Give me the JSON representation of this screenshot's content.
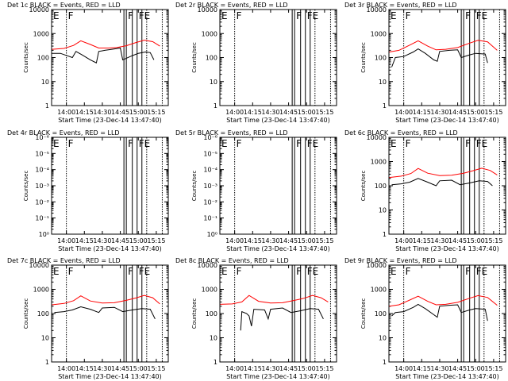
{
  "colors": {
    "events": "#000000",
    "lld": "#ff0000",
    "axes": "#000000",
    "background": "#ffffff"
  },
  "xlabel": "Start Time (23-Dec-14 13:47:40)",
  "ylabel": "Counts/sec",
  "x_tick_labels": [
    "14:00",
    "14:15",
    "14:30",
    "14:45",
    "15:00",
    "15:15"
  ],
  "y_tick_labels_log": [
    "1",
    "10",
    "100",
    "1000",
    "10000"
  ],
  "y_tick_labels_empty": [
    "10⁰",
    "10⁻¹",
    "10⁻²",
    "10⁻³",
    "10⁻⁴",
    "10⁻⁵",
    "10⁻⁶"
  ],
  "markers": {
    "first": "E",
    "second": "F",
    "third": "F",
    "fourth": "FE"
  },
  "chart_data": [
    {
      "type": "line",
      "title": "Det 1c BLACK = Events, RED = LLD",
      "kind": "data",
      "variant": "normal",
      "x_range": [
        "13:47:40",
        "15:25"
      ],
      "y_range": [
        1,
        10000
      ],
      "y_scale": "log",
      "series": [
        {
          "name": "Events",
          "color": "#000000",
          "points": [
            [
              "13:48",
              150
            ],
            [
              "13:55",
              150
            ],
            [
              "14:05",
              100
            ],
            [
              "14:08",
              180
            ],
            [
              "14:13",
              130
            ],
            [
              "14:20",
              80
            ],
            [
              "14:25",
              60
            ],
            [
              "14:27",
              180
            ],
            [
              "14:32",
              200
            ],
            [
              "14:38",
              220
            ],
            [
              "14:45",
              250
            ],
            [
              "14:47",
              80
            ],
            [
              "14:55",
              120
            ],
            [
              "15:00",
              150
            ],
            [
              "15:06",
              170
            ],
            [
              "15:10",
              160
            ],
            [
              "15:13",
              80
            ]
          ]
        },
        {
          "name": "LLD",
          "color": "#ff0000",
          "points": [
            [
              "13:48",
              220
            ],
            [
              "13:58",
              240
            ],
            [
              "14:06",
              320
            ],
            [
              "14:12",
              500
            ],
            [
              "14:20",
              350
            ],
            [
              "14:27",
              250
            ],
            [
              "14:35",
              250
            ],
            [
              "14:42",
              260
            ],
            [
              "14:50",
              310
            ],
            [
              "14:58",
              420
            ],
            [
              "15:05",
              530
            ],
            [
              "15:12",
              460
            ],
            [
              "15:18",
              300
            ]
          ]
        }
      ]
    },
    {
      "type": "line",
      "title": "Det 2r BLACK = Events, RED = LLD",
      "kind": "data",
      "variant": "flat",
      "x_range": [
        "13:47:40",
        "15:25"
      ],
      "y_range": [
        1,
        10000
      ],
      "y_scale": "log",
      "series": []
    },
    {
      "type": "line",
      "title": "Det 3r BLACK = Events, RED = LLD",
      "kind": "data",
      "variant": "tall",
      "x_range": [
        "13:47:40",
        "15:25"
      ],
      "y_range": [
        1,
        10000
      ],
      "y_scale": "log",
      "series": [
        {
          "name": "Events",
          "color": "#000000",
          "points": [
            [
              "13:50",
              40
            ],
            [
              "13:53",
              100
            ],
            [
              "14:00",
              110
            ],
            [
              "14:08",
              170
            ],
            [
              "14:12",
              230
            ],
            [
              "14:18",
              150
            ],
            [
              "14:25",
              80
            ],
            [
              "14:28",
              70
            ],
            [
              "14:30",
              180
            ],
            [
              "14:38",
              200
            ],
            [
              "14:45",
              210
            ],
            [
              "14:48",
              100
            ],
            [
              "14:55",
              130
            ],
            [
              "15:00",
              150
            ],
            [
              "15:08",
              140
            ],
            [
              "15:10",
              60
            ]
          ]
        },
        {
          "name": "LLD",
          "color": "#ff0000",
          "points": [
            [
              "13:48",
              170
            ],
            [
              "13:56",
              200
            ],
            [
              "14:05",
              330
            ],
            [
              "14:12",
              500
            ],
            [
              "14:20",
              300
            ],
            [
              "14:27",
              210
            ],
            [
              "14:35",
              220
            ],
            [
              "14:45",
              260
            ],
            [
              "14:55",
              400
            ],
            [
              "15:02",
              520
            ],
            [
              "15:10",
              450
            ],
            [
              "15:18",
              200
            ]
          ]
        }
      ]
    },
    {
      "type": "line",
      "title": "Det 4r BLACK = Events, RED = LLD",
      "kind": "empty",
      "x_range": [
        "13:47:40",
        "15:25"
      ],
      "y_range": [
        1e-06,
        1
      ],
      "y_scale": "log",
      "series": []
    },
    {
      "type": "line",
      "title": "Det 5r BLACK = Events, RED = LLD",
      "kind": "empty",
      "x_range": [
        "13:47:40",
        "15:25"
      ],
      "y_range": [
        1e-06,
        1
      ],
      "y_scale": "log",
      "series": []
    },
    {
      "type": "line",
      "title": "Det 6c BLACK = Events, RED = LLD",
      "kind": "data",
      "variant": "normal",
      "x_range": [
        "13:47:40",
        "15:25"
      ],
      "y_range": [
        1,
        10000
      ],
      "y_scale": "log",
      "series": [
        {
          "name": "Events",
          "color": "#000000",
          "points": [
            [
              "13:50",
              110
            ],
            [
              "13:58",
              120
            ],
            [
              "14:05",
              140
            ],
            [
              "14:12",
              200
            ],
            [
              "14:20",
              140
            ],
            [
              "14:27",
              100
            ],
            [
              "14:30",
              160
            ],
            [
              "14:40",
              170
            ],
            [
              "14:47",
              110
            ],
            [
              "14:55",
              130
            ],
            [
              "15:03",
              160
            ],
            [
              "15:10",
              150
            ],
            [
              "15:14",
              100
            ]
          ]
        },
        {
          "name": "LLD",
          "color": "#ff0000",
          "points": [
            [
              "13:48",
              220
            ],
            [
              "13:58",
              250
            ],
            [
              "14:06",
              320
            ],
            [
              "14:12",
              520
            ],
            [
              "14:20",
              330
            ],
            [
              "14:30",
              260
            ],
            [
              "14:40",
              270
            ],
            [
              "14:50",
              330
            ],
            [
              "14:58",
              420
            ],
            [
              "15:05",
              530
            ],
            [
              "15:12",
              430
            ],
            [
              "15:18",
              280
            ]
          ]
        }
      ]
    },
    {
      "type": "line",
      "title": "Det 7c BLACK = Events, RED = LLD",
      "kind": "data",
      "variant": "normal",
      "x_range": [
        "13:47:40",
        "15:25"
      ],
      "y_range": [
        1,
        10000
      ],
      "y_scale": "log",
      "series": [
        {
          "name": "Events",
          "color": "#000000",
          "points": [
            [
              "13:50",
              110
            ],
            [
              "13:58",
              120
            ],
            [
              "14:05",
              140
            ],
            [
              "14:12",
              190
            ],
            [
              "14:20",
              150
            ],
            [
              "14:27",
              110
            ],
            [
              "14:30",
              170
            ],
            [
              "14:40",
              180
            ],
            [
              "14:47",
              120
            ],
            [
              "14:55",
              140
            ],
            [
              "15:03",
              160
            ],
            [
              "15:10",
              150
            ],
            [
              "15:14",
              60
            ]
          ]
        },
        {
          "name": "LLD",
          "color": "#ff0000",
          "points": [
            [
              "13:48",
              230
            ],
            [
              "13:58",
              260
            ],
            [
              "14:06",
              340
            ],
            [
              "14:12",
              540
            ],
            [
              "14:20",
              330
            ],
            [
              "14:30",
              270
            ],
            [
              "14:40",
              280
            ],
            [
              "14:50",
              350
            ],
            [
              "14:58",
              440
            ],
            [
              "15:05",
              560
            ],
            [
              "15:12",
              450
            ],
            [
              "15:18",
              250
            ]
          ]
        }
      ]
    },
    {
      "type": "line",
      "title": "Det 8c BLACK = Events, RED = LLD",
      "kind": "data",
      "variant": "normal",
      "x_range": [
        "13:47:40",
        "15:25"
      ],
      "y_range": [
        1,
        10000
      ],
      "y_scale": "log",
      "series": [
        {
          "name": "Events",
          "color": "#000000",
          "points": [
            [
              "14:05",
              20
            ],
            [
              "14:06",
              120
            ],
            [
              "14:10",
              100
            ],
            [
              "14:12",
              80
            ],
            [
              "14:14",
              30
            ],
            [
              "14:16",
              150
            ],
            [
              "14:25",
              140
            ],
            [
              "14:28",
              60
            ],
            [
              "14:30",
              150
            ],
            [
              "14:40",
              170
            ],
            [
              "14:47",
              110
            ],
            [
              "14:55",
              130
            ],
            [
              "15:03",
              160
            ],
            [
              "15:10",
              150
            ],
            [
              "15:14",
              60
            ]
          ]
        },
        {
          "name": "LLD",
          "color": "#ff0000",
          "points": [
            [
              "13:48",
              240
            ],
            [
              "13:58",
              250
            ],
            [
              "14:06",
              300
            ],
            [
              "14:12",
              560
            ],
            [
              "14:20",
              320
            ],
            [
              "14:30",
              270
            ],
            [
              "14:40",
              280
            ],
            [
              "14:50",
              350
            ],
            [
              "14:58",
              430
            ],
            [
              "15:05",
              560
            ],
            [
              "15:12",
              450
            ],
            [
              "15:18",
              300
            ]
          ]
        }
      ]
    },
    {
      "type": "line",
      "title": "Det 9r BLACK = Events, RED = LLD",
      "kind": "data",
      "variant": "tall",
      "x_range": [
        "13:47:40",
        "15:25"
      ],
      "y_range": [
        1,
        10000
      ],
      "y_scale": "log",
      "series": [
        {
          "name": "Events",
          "color": "#000000",
          "points": [
            [
              "13:50",
              80
            ],
            [
              "13:53",
              110
            ],
            [
              "14:00",
              120
            ],
            [
              "14:08",
              180
            ],
            [
              "14:12",
              240
            ],
            [
              "14:18",
              160
            ],
            [
              "14:25",
              90
            ],
            [
              "14:28",
              70
            ],
            [
              "14:30",
              200
            ],
            [
              "14:38",
              220
            ],
            [
              "14:45",
              230
            ],
            [
              "14:48",
              110
            ],
            [
              "14:55",
              140
            ],
            [
              "15:00",
              160
            ],
            [
              "15:08",
              150
            ],
            [
              "15:10",
              50
            ]
          ]
        },
        {
          "name": "LLD",
          "color": "#ff0000",
          "points": [
            [
              "13:48",
              200
            ],
            [
              "13:56",
              230
            ],
            [
              "14:05",
              360
            ],
            [
              "14:12",
              520
            ],
            [
              "14:20",
              320
            ],
            [
              "14:27",
              230
            ],
            [
              "14:35",
              240
            ],
            [
              "14:45",
              290
            ],
            [
              "14:55",
              430
            ],
            [
              "15:02",
              550
            ],
            [
              "15:10",
              460
            ],
            [
              "15:18",
              220
            ]
          ]
        }
      ]
    }
  ]
}
